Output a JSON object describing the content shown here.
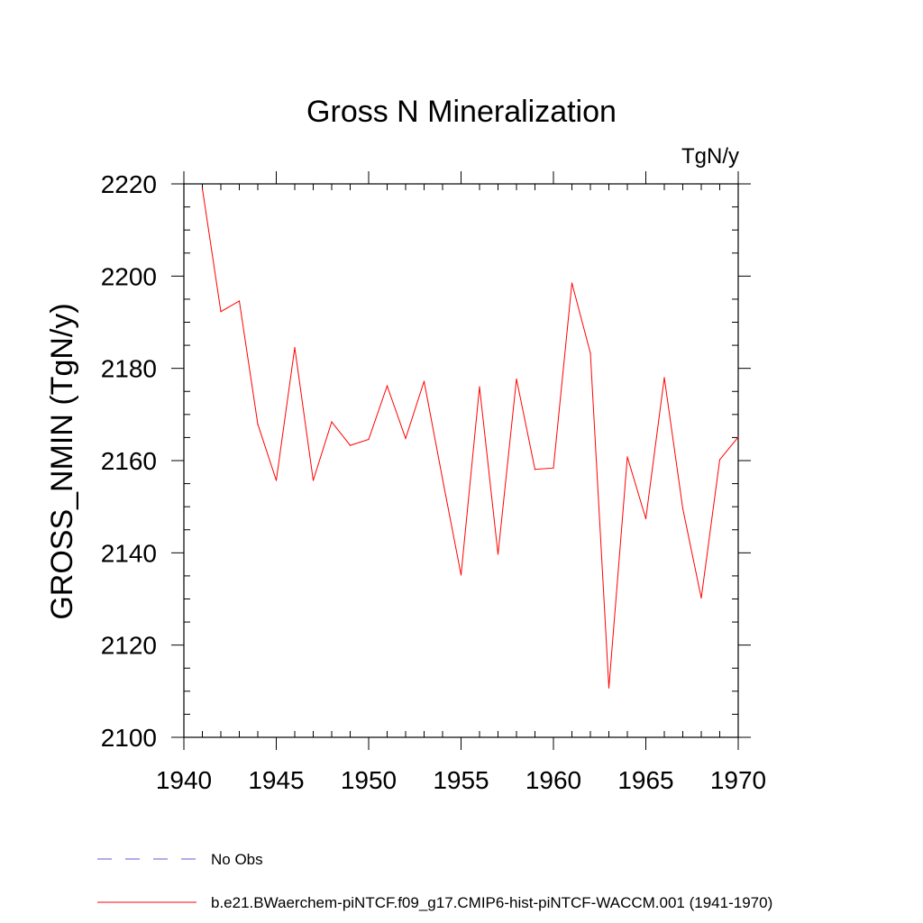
{
  "chart_data": {
    "type": "line",
    "title": "Gross N Mineralization",
    "units_label": "TgN/y",
    "ylabel": "GROSS_NMIN  (TgN/y)",
    "xlabel": "",
    "xlim": [
      1940,
      1970
    ],
    "ylim": [
      2100,
      2220
    ],
    "x_ticks": [
      1940,
      1945,
      1950,
      1955,
      1960,
      1965,
      1970
    ],
    "y_ticks": [
      2100,
      2120,
      2140,
      2160,
      2180,
      2200,
      2220
    ],
    "grid": false,
    "series": [
      {
        "name": "b.e21.BWaerchem-piNTCF.f09_g17.CMIP6-hist-piNTCF-WACCM.001 (1941-1970)",
        "color": "#ff0000",
        "x": [
          1941,
          1942,
          1943,
          1944,
          1945,
          1946,
          1947,
          1948,
          1949,
          1950,
          1951,
          1952,
          1953,
          1954,
          1955,
          1956,
          1957,
          1958,
          1959,
          1960,
          1961,
          1962,
          1963,
          1964,
          1965,
          1966,
          1967,
          1968,
          1969,
          1970
        ],
        "values": [
          2219.0,
          2192.3,
          2194.6,
          2167.9,
          2155.7,
          2184.5,
          2155.7,
          2168.4,
          2163.3,
          2164.6,
          2176.2,
          2164.8,
          2177.2,
          2156.0,
          2135.2,
          2176.0,
          2139.7,
          2177.7,
          2158.1,
          2158.4,
          2198.5,
          2183.3,
          2110.7,
          2160.8,
          2147.4,
          2178.0,
          2149.6,
          2130.2,
          2160.2,
          2165.1
        ]
      }
    ],
    "legend": {
      "placement": "bottom",
      "entries": [
        {
          "label": "No Obs",
          "color": "#6a5acd",
          "style": "dashed"
        },
        {
          "label": "b.e21.BWaerchem-piNTCF.f09_g17.CMIP6-hist-piNTCF-WACCM.001 (1941-1970)",
          "color": "#ff0000",
          "style": "solid"
        }
      ]
    }
  }
}
